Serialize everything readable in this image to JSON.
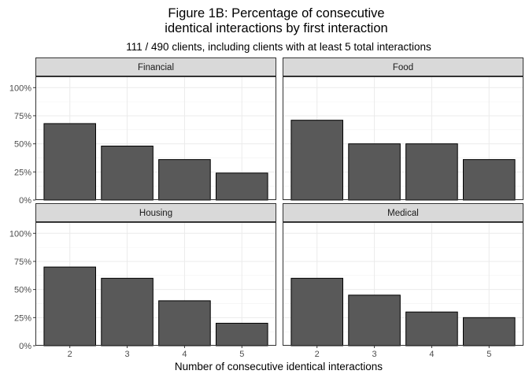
{
  "chart_data": {
    "type": "bar",
    "title_line1": "Figure 1B: Percentage of consecutive",
    "title_line2": "identical interactions by first interaction",
    "subtitle": "111 / 490 clients, including clients with at least 5 total interactions",
    "xlabel": "Number of consecutive identical interactions",
    "ylabel": "",
    "categories": [
      "2",
      "3",
      "4",
      "5"
    ],
    "ylim": [
      0,
      1.1
    ],
    "yticks": [
      0,
      0.25,
      0.5,
      0.75,
      1.0
    ],
    "ytick_labels": [
      "0%",
      "25%",
      "50%",
      "75%",
      "100%"
    ],
    "grid": true,
    "legend": "none",
    "bar_color": "#595959",
    "panels": [
      {
        "name": "Financial",
        "values": [
          0.68,
          0.48,
          0.36,
          0.24
        ]
      },
      {
        "name": "Food",
        "values": [
          0.71,
          0.5,
          0.5,
          0.36
        ]
      },
      {
        "name": "Housing",
        "values": [
          0.7,
          0.6,
          0.4,
          0.2
        ]
      },
      {
        "name": "Medical",
        "values": [
          0.6,
          0.45,
          0.3,
          0.25
        ]
      }
    ]
  }
}
